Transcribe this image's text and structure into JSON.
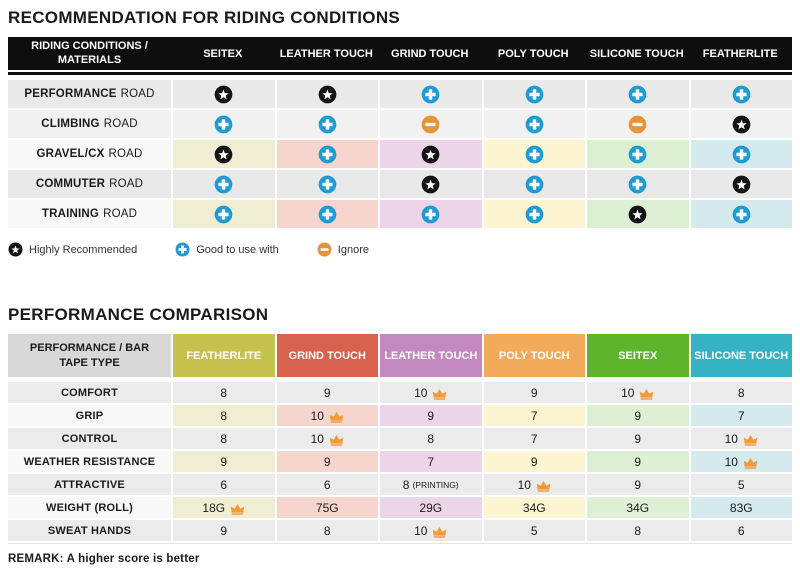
{
  "colors": {
    "header_black": "#0e0e0e",
    "star_bg": "#141414",
    "plus_bg": "#1f9ad2",
    "minus_bg": "#e8923a",
    "crown": "#f2993a",
    "row_gray": "#e9e9e9",
    "row_light": "#f1f1f1",
    "row_colored_label": "#f8f8f8",
    "t2_row_gray": "#ebebeb",
    "t2_header_label_bg": "#d8d8d8",
    "pale_columns": [
      "#efeed3",
      "#f7d5cf",
      "#edd5e9",
      "#fdf4d2",
      "#def0d4",
      "#d4eaee"
    ]
  },
  "chart_data": [
    {
      "type": "table",
      "title": "RECOMMENDATION FOR RIDING CONDITIONS",
      "header_label": "RIDING CONDITIONS / MATERIALS",
      "columns": [
        "SEITEX",
        "LEATHER TOUCH",
        "GRIND TOUCH",
        "POLY TOUCH",
        "SILICONE TOUCH",
        "FEATHERLITE"
      ],
      "icon_meaning": {
        "star": "Highly Recommended",
        "plus": "Good to use with",
        "minus": "Ignore"
      },
      "rows": [
        {
          "label_bold": "PERFORMANCE",
          "label_rest": "ROAD",
          "variant": "gray",
          "icons": [
            "star",
            "star",
            "plus",
            "plus",
            "plus",
            "plus"
          ]
        },
        {
          "label_bold": "CLIMBING",
          "label_rest": "ROAD",
          "variant": "light",
          "icons": [
            "plus",
            "plus",
            "minus",
            "plus",
            "minus",
            "star"
          ]
        },
        {
          "label_bold": "GRAVEL/CX",
          "label_rest": "ROAD",
          "variant": "colored",
          "icons": [
            "star",
            "plus",
            "star",
            "plus",
            "plus",
            "plus"
          ]
        },
        {
          "label_bold": "COMMUTER",
          "label_rest": "ROAD",
          "variant": "gray",
          "icons": [
            "plus",
            "plus",
            "star",
            "plus",
            "plus",
            "star"
          ]
        },
        {
          "label_bold": "TRAINING",
          "label_rest": "ROAD",
          "variant": "colored",
          "icons": [
            "plus",
            "plus",
            "plus",
            "plus",
            "star",
            "plus"
          ]
        }
      ],
      "legend": [
        {
          "icon": "star",
          "label": "Highly Recommended"
        },
        {
          "icon": "plus",
          "label": "Good to use with"
        },
        {
          "icon": "minus",
          "label": "Ignore"
        }
      ]
    },
    {
      "type": "table",
      "title": "PERFORMANCE COMPARISON",
      "header_label": "PERFORMANCE / BAR TAPE TYPE",
      "columns": [
        {
          "label": "FEATHERLITE",
          "color": "#c6c04d"
        },
        {
          "label": "GRIND TOUCH",
          "color": "#d7604f"
        },
        {
          "label": "LEATHER TOUCH",
          "color": "#c288bf"
        },
        {
          "label": "POLY TOUCH",
          "color": "#f2aa5b"
        },
        {
          "label": "SEITEX",
          "color": "#5fb42e"
        },
        {
          "label": "SILICONE TOUCH",
          "color": "#35b3c4"
        }
      ],
      "crown_meaning": "best score in row",
      "rows": [
        {
          "label": "COMFORT",
          "variant": "gray",
          "cells": [
            {
              "value": "8"
            },
            {
              "value": "9"
            },
            {
              "value": "10",
              "crown": true
            },
            {
              "value": "9"
            },
            {
              "value": "10",
              "crown": true
            },
            {
              "value": "8"
            }
          ]
        },
        {
          "label": "GRIP",
          "variant": "colored",
          "cells": [
            {
              "value": "8"
            },
            {
              "value": "10",
              "crown": true
            },
            {
              "value": "9"
            },
            {
              "value": "7"
            },
            {
              "value": "9"
            },
            {
              "value": "7"
            }
          ]
        },
        {
          "label": "CONTROL",
          "variant": "gray",
          "cells": [
            {
              "value": "8"
            },
            {
              "value": "10",
              "crown": true
            },
            {
              "value": "8"
            },
            {
              "value": "7"
            },
            {
              "value": "9"
            },
            {
              "value": "10",
              "crown": true
            }
          ]
        },
        {
          "label": "WEATHER RESISTANCE",
          "variant": "colored",
          "cells": [
            {
              "value": "9"
            },
            {
              "value": "9"
            },
            {
              "value": "7"
            },
            {
              "value": "9"
            },
            {
              "value": "9"
            },
            {
              "value": "10",
              "crown": true
            }
          ]
        },
        {
          "label": "ATTRACTIVE",
          "variant": "gray",
          "cells": [
            {
              "value": "6"
            },
            {
              "value": "6"
            },
            {
              "value": "8",
              "suffix": "(PRINTING)"
            },
            {
              "value": "10",
              "crown": true
            },
            {
              "value": "9"
            },
            {
              "value": "5"
            }
          ]
        },
        {
          "label": "WEIGHT (ROLL)",
          "variant": "colored",
          "cells": [
            {
              "value": "18G",
              "crown": true
            },
            {
              "value": "75G"
            },
            {
              "value": "29G"
            },
            {
              "value": "34G"
            },
            {
              "value": "34G"
            },
            {
              "value": "83G"
            }
          ]
        },
        {
          "label": "SWEAT HANDS",
          "variant": "gray",
          "cells": [
            {
              "value": "9"
            },
            {
              "value": "8"
            },
            {
              "value": "10",
              "crown": true
            },
            {
              "value": "5"
            },
            {
              "value": "8"
            },
            {
              "value": "6"
            }
          ]
        }
      ],
      "remark": "REMARK: A higher score is better"
    }
  ]
}
